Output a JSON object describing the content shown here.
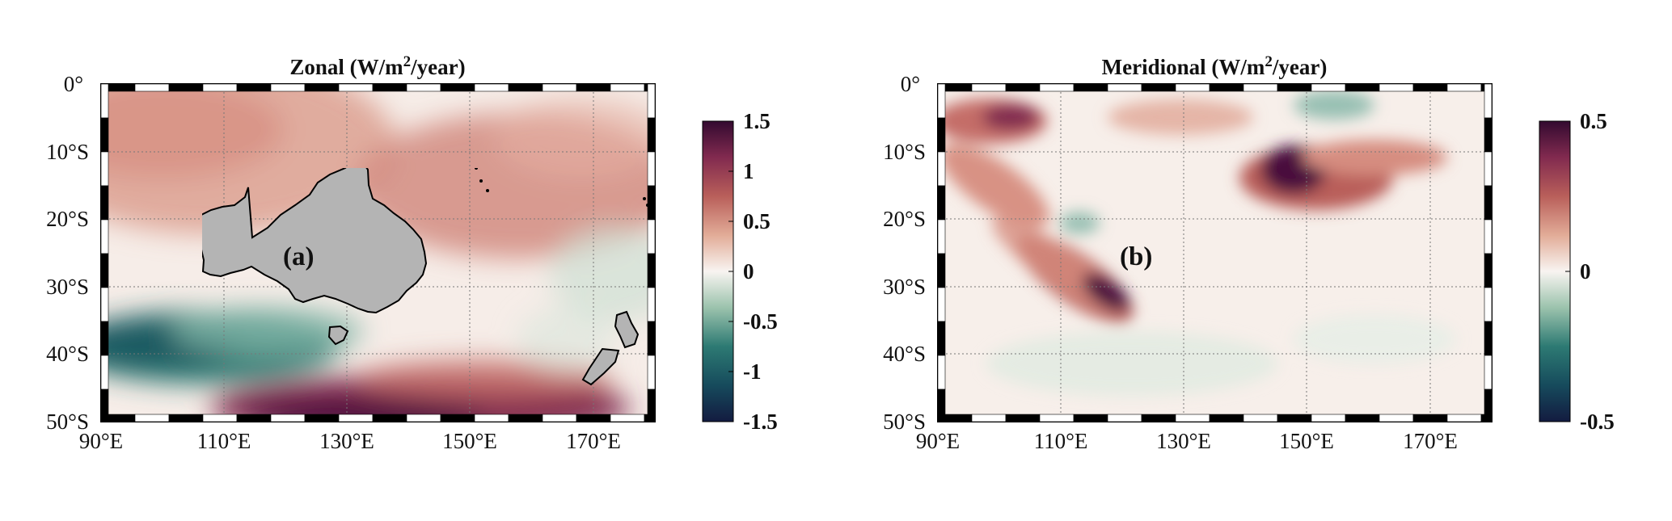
{
  "panels": [
    {
      "id": "zonal",
      "title_main": "Zonal (W/m",
      "title_sup": "2",
      "title_end": "/year)",
      "panel_label": "(a)",
      "lat_ticks": [
        "0°",
        "10°S",
        "20°S",
        "30°S",
        "40°S",
        "50°S"
      ],
      "lon_ticks": [
        "90°E",
        "110°E",
        "130°E",
        "150°E",
        "170°E"
      ],
      "colorbar": {
        "min": -1.5,
        "max": 1.5,
        "ticks": [
          {
            "value": 1.5,
            "label": "1.5"
          },
          {
            "value": 1,
            "label": "1"
          },
          {
            "value": 0.5,
            "label": "0.5"
          },
          {
            "value": 0,
            "label": "0"
          },
          {
            "value": -0.5,
            "label": "-0.5"
          },
          {
            "value": -1,
            "label": "-1"
          },
          {
            "value": -1.5,
            "label": "-1.5"
          }
        ]
      }
    },
    {
      "id": "meridional",
      "title_main": "Meridional (W/m",
      "title_sup": "2",
      "title_end": "/year)",
      "panel_label": "(b)",
      "lat_ticks": [
        "0°",
        "10°S",
        "20°S",
        "30°S",
        "40°S",
        "50°S"
      ],
      "lon_ticks": [
        "90°E",
        "110°E",
        "130°E",
        "150°E",
        "170°E"
      ],
      "colorbar": {
        "min": -0.5,
        "max": 0.5,
        "ticks": [
          {
            "value": 0.5,
            "label": "0.5"
          },
          {
            "value": 0,
            "label": "0"
          },
          {
            "value": -0.5,
            "label": "-0.5"
          }
        ]
      }
    }
  ],
  "map_extent": {
    "lon_min": 90,
    "lon_max": 180,
    "lat_min": -50,
    "lat_max": 0
  },
  "colors": {
    "land": "#b4b4b4",
    "coast": "#000000",
    "positive": "#4a0f3c",
    "neutral": "#f8f2ee",
    "negative": "#0f2a4a"
  }
}
